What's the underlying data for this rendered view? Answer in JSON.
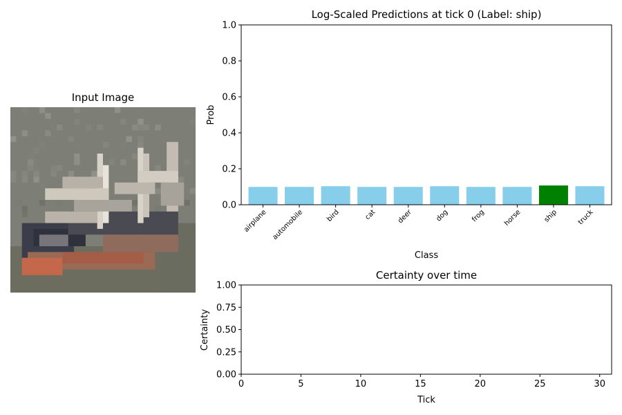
{
  "figure": {
    "image_panel_title": "Input Image"
  },
  "chart_data": [
    {
      "type": "bar",
      "title": "Log-Scaled Predictions at tick 0 (Label: ship)",
      "xlabel": "Class",
      "ylabel": "Prob",
      "ylim": [
        0,
        1.0
      ],
      "yticks": [
        "0.0",
        "0.2",
        "0.4",
        "0.6",
        "0.8",
        "1.0"
      ],
      "categories": [
        "airplane",
        "automobile",
        "bird",
        "cat",
        "deer",
        "dog",
        "frog",
        "horse",
        "ship",
        "truck"
      ],
      "values": [
        0.099,
        0.099,
        0.103,
        0.099,
        0.099,
        0.103,
        0.099,
        0.099,
        0.107,
        0.103
      ],
      "highlighted_category": "ship",
      "colors": {
        "bar": "#87ceeb",
        "highlight": "#008000"
      },
      "grid": false
    },
    {
      "type": "line",
      "title": "Certainty over time",
      "xlabel": "Tick",
      "ylabel": "Certainty",
      "xlim": [
        0,
        31
      ],
      "ylim": [
        0,
        1.0
      ],
      "xticks": [
        "0",
        "5",
        "10",
        "15",
        "20",
        "25",
        "30"
      ],
      "yticks": [
        "0.00",
        "0.25",
        "0.50",
        "0.75",
        "1.00"
      ],
      "series": [
        {
          "x": [],
          "y": []
        }
      ],
      "grid": false
    }
  ]
}
